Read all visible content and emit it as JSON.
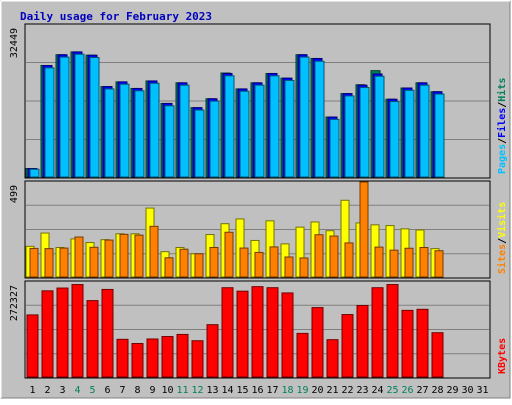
{
  "chart_data": {
    "type": "bar",
    "title": "Daily usage for February 2023",
    "days": [
      "1",
      "2",
      "3",
      "4",
      "5",
      "6",
      "7",
      "8",
      "9",
      "10",
      "11",
      "12",
      "13",
      "14",
      "15",
      "16",
      "17",
      "18",
      "19",
      "20",
      "21",
      "22",
      "23",
      "24",
      "25",
      "26",
      "27",
      "28",
      "29",
      "30",
      "31"
    ],
    "weekend_days": [
      "4",
      "5",
      "11",
      "12",
      "18",
      "19",
      "25",
      "26"
    ],
    "panels": [
      {
        "id": "pages-files-hits",
        "y_tick": "32449",
        "y_max": 32449,
        "legend": [
          "Pages",
          "/",
          "Files",
          "/",
          "Hits"
        ],
        "legend_colors": [
          "#00c0ff",
          "#000000",
          "#0000ff",
          "#000000",
          "#00805c"
        ],
        "series": [
          {
            "name": "Hits",
            "color": "#00805c",
            "values": [
              1800,
              23800,
              26100,
              26700,
              26000,
              19300,
              20300,
              18900,
              20500,
              15700,
              20100,
              14800,
              16700,
              22200,
              18800,
              20100,
              22100,
              21100,
              26100,
              25300,
              12800,
              17800,
              19700,
              22700,
              16600,
              19000,
              20100,
              18200
            ]
          },
          {
            "name": "Files",
            "color": "#0000ff",
            "values": [
              1800,
              23800,
              26100,
              26700,
              26000,
              19300,
              20300,
              18900,
              20500,
              15700,
              20100,
              14800,
              16700,
              22100,
              18800,
              20100,
              22100,
              21100,
              26100,
              25300,
              12800,
              17800,
              19600,
              22000,
              16600,
              19000,
              20100,
              18200
            ]
          },
          {
            "name": "Pages",
            "color": "#00c0ff",
            "values": [
              1650,
              23300,
              25600,
              26200,
              25500,
              18800,
              19800,
              18400,
              20000,
              15200,
              19600,
              14300,
              16200,
              21600,
              18300,
              19600,
              21600,
              20600,
              25600,
              24700,
              12300,
              17300,
              19100,
              21500,
              16100,
              18500,
              19600,
              17700
            ]
          }
        ]
      },
      {
        "id": "sites-visits",
        "y_tick": "499",
        "y_max": 499,
        "legend": [
          "Sites",
          "/",
          "Visits"
        ],
        "legend_colors": [
          "#ff8000",
          "#000000",
          "#ffff00"
        ],
        "series": [
          {
            "name": "Visits",
            "color": "#ffff00",
            "values": [
              161,
              231,
              155,
              200,
              181,
              196,
              227,
              227,
              362,
              133,
              155,
              122,
              223,
              280,
              305,
              192,
              295,
              174,
              262,
              289,
              243,
              403,
              284,
              274,
              270,
              253,
              247,
              149
            ]
          },
          {
            "name": "Sites",
            "color": "#ff8000",
            "values": [
              150,
              149,
              152,
              210,
              156,
              194,
              224,
              220,
              266,
              101,
              146,
              122,
              155,
              235,
              152,
              129,
              158,
              105,
              100,
              222,
              215,
              179,
              499,
              157,
              141,
              151,
              155,
              138
            ]
          }
        ]
      },
      {
        "id": "kbytes",
        "y_tick": "272327",
        "y_max": 272327,
        "legend": [
          "KBytes"
        ],
        "legend_colors": [
          "#ff0000"
        ],
        "series": [
          {
            "name": "KBytes",
            "color": "#ff0000",
            "values": [
              178000,
              247000,
              255000,
              265000,
              219000,
              251000,
              108000,
              96000,
              109000,
              116000,
              122000,
              104000,
              150000,
              256000,
              246000,
              259000,
              256000,
              241000,
              125000,
              199000,
              107000,
              179000,
              205000,
              256000,
              265000,
              191000,
              194000,
              127000
            ]
          }
        ]
      }
    ]
  }
}
